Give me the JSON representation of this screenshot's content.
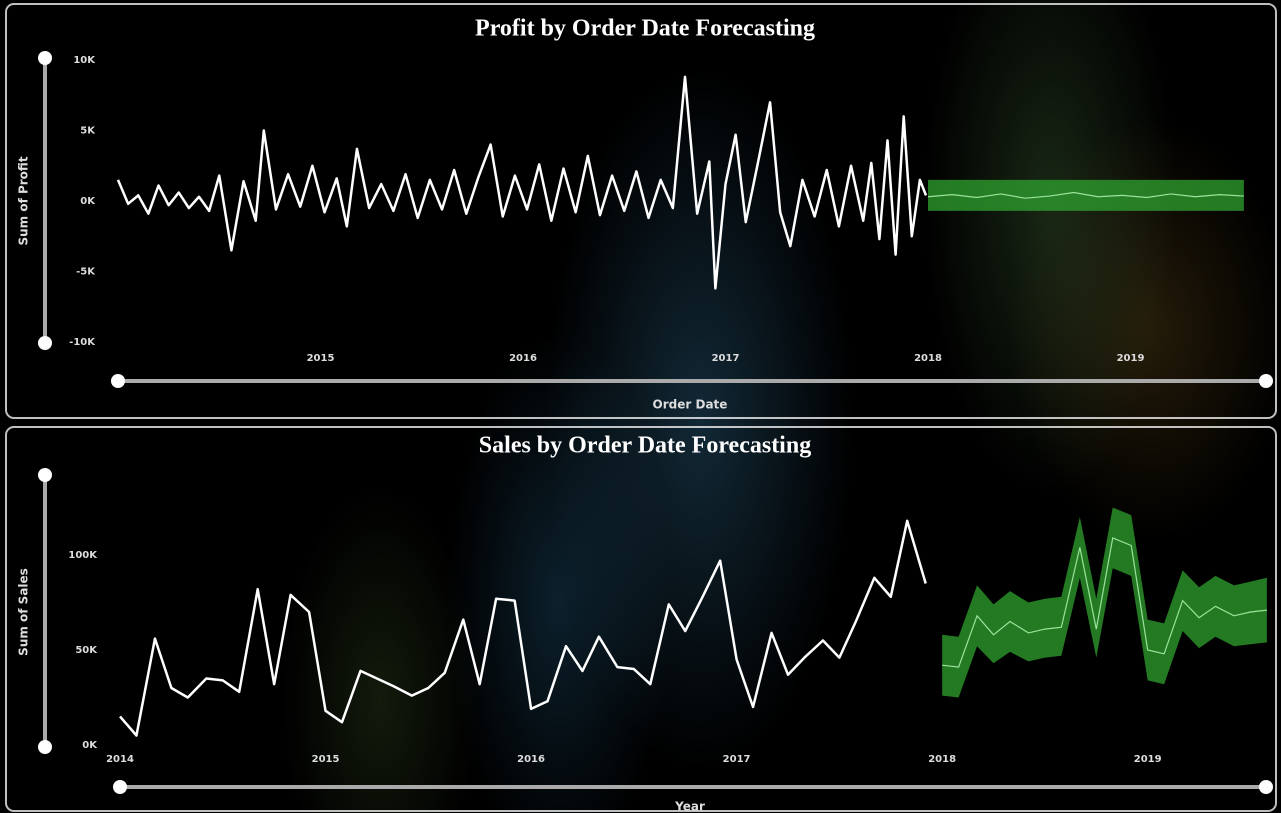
{
  "chart_data": [
    {
      "type": "line",
      "title": "Profit by Order Date Forecasting",
      "x_label": "Order Date",
      "y_label": "Sum of Profit",
      "xlim": [
        2014,
        2019.6
      ],
      "xticks": [
        2015,
        2016,
        2017,
        2018,
        2019
      ],
      "ylim": [
        -10000,
        10000
      ],
      "yticks": [
        {
          "value": 10000,
          "label": "10K"
        },
        {
          "value": 5000,
          "label": "5K"
        },
        {
          "value": 0,
          "label": "0K"
        },
        {
          "value": -5000,
          "label": "-5K"
        },
        {
          "value": -10000,
          "label": "-10K"
        }
      ],
      "color": "#ffffff",
      "x": [
        2014.0,
        2014.05,
        2014.1,
        2014.15,
        2014.2,
        2014.25,
        2014.3,
        2014.35,
        2014.4,
        2014.45,
        2014.5,
        2014.56,
        2014.62,
        2014.68,
        2014.72,
        2014.78,
        2014.84,
        2014.9,
        2014.96,
        2015.02,
        2015.08,
        2015.13,
        2015.18,
        2015.24,
        2015.3,
        2015.36,
        2015.42,
        2015.48,
        2015.54,
        2015.6,
        2015.66,
        2015.72,
        2015.78,
        2015.84,
        2015.9,
        2015.96,
        2016.02,
        2016.08,
        2016.14,
        2016.2,
        2016.26,
        2016.32,
        2016.38,
        2016.44,
        2016.5,
        2016.56,
        2016.62,
        2016.68,
        2016.74,
        2016.8,
        2016.86,
        2016.92,
        2016.95,
        2017.0,
        2017.05,
        2017.1,
        2017.16,
        2017.22,
        2017.27,
        2017.32,
        2017.38,
        2017.44,
        2017.5,
        2017.56,
        2017.62,
        2017.68,
        2017.72,
        2017.76,
        2017.8,
        2017.84,
        2017.88,
        2017.92,
        2017.96,
        2017.99
      ],
      "values": [
        1500,
        -200,
        400,
        -900,
        1100,
        -300,
        600,
        -500,
        300,
        -700,
        1800,
        -3500,
        1400,
        -1400,
        5000,
        -600,
        1900,
        -400,
        2500,
        -800,
        1600,
        -1800,
        3700,
        -500,
        1200,
        -700,
        1900,
        -1200,
        1500,
        -600,
        2200,
        -900,
        1700,
        4000,
        -1100,
        1800,
        -600,
        2600,
        -1400,
        2300,
        -800,
        3200,
        -1000,
        1800,
        -700,
        2100,
        -1200,
        1500,
        -500,
        8800,
        -900,
        2800,
        -6200,
        1200,
        4700,
        -1500,
        2700,
        7000,
        -800,
        -3200,
        1500,
        -1100,
        2200,
        -1800,
        2500,
        -1400,
        2700,
        -2700,
        4300,
        -3800,
        6000,
        -2500,
        1500,
        400
      ],
      "forecast": {
        "color": "#2fa32f",
        "x": [
          2018.0,
          2018.12,
          2018.24,
          2018.36,
          2018.48,
          2018.6,
          2018.72,
          2018.84,
          2018.96,
          2019.08,
          2019.2,
          2019.32,
          2019.44,
          2019.56
        ],
        "values": [
          300,
          450,
          250,
          500,
          200,
          350,
          600,
          300,
          400,
          250,
          500,
          300,
          450,
          350
        ],
        "lower": [
          -700,
          -700,
          -700,
          -700,
          -700,
          -700,
          -700,
          -700,
          -700,
          -700,
          -700,
          -700,
          -700,
          -700
        ],
        "upper": [
          1500,
          1500,
          1500,
          1500,
          1500,
          1500,
          1500,
          1500,
          1500,
          1500,
          1500,
          1500,
          1500,
          1500
        ]
      }
    },
    {
      "type": "line",
      "title": "Sales by Order Date Forecasting",
      "x_label": "Year",
      "y_label": "Sum of Sales",
      "xlim": [
        2014,
        2019.6
      ],
      "xticks": [
        2014,
        2015,
        2016,
        2017,
        2018,
        2019
      ],
      "ylim": [
        0,
        140000
      ],
      "yticks": [
        {
          "value": 100000,
          "label": "100K"
        },
        {
          "value": 50000,
          "label": "50K"
        },
        {
          "value": 0,
          "label": "0K"
        }
      ],
      "color": "#ffffff",
      "x": [
        2014.0,
        2014.08,
        2014.17,
        2014.25,
        2014.33,
        2014.42,
        2014.5,
        2014.58,
        2014.67,
        2014.75,
        2014.83,
        2014.92,
        2015.0,
        2015.08,
        2015.17,
        2015.25,
        2015.33,
        2015.42,
        2015.5,
        2015.58,
        2015.67,
        2015.75,
        2015.83,
        2015.92,
        2016.0,
        2016.08,
        2016.17,
        2016.25,
        2016.33,
        2016.42,
        2016.5,
        2016.58,
        2016.67,
        2016.75,
        2016.83,
        2016.92,
        2017.0,
        2017.08,
        2017.17,
        2017.25,
        2017.33,
        2017.42,
        2017.5,
        2017.58,
        2017.67,
        2017.75,
        2017.83,
        2017.92
      ],
      "values": [
        15000,
        5000,
        56000,
        30000,
        25000,
        35000,
        34000,
        28000,
        82000,
        32000,
        79000,
        70000,
        18000,
        12000,
        39000,
        35000,
        31000,
        26000,
        30000,
        38000,
        66000,
        32000,
        77000,
        76000,
        19000,
        23000,
        52000,
        39000,
        57000,
        41000,
        40000,
        32000,
        74000,
        60000,
        77000,
        97000,
        45000,
        20000,
        59000,
        37000,
        46000,
        55000,
        46000,
        65000,
        88000,
        78000,
        118000,
        85000
      ],
      "forecast": {
        "color": "#2fa32f",
        "x": [
          2018.0,
          2018.08,
          2018.17,
          2018.25,
          2018.33,
          2018.42,
          2018.5,
          2018.58,
          2018.67,
          2018.75,
          2018.83,
          2018.92,
          2019.0,
          2019.08,
          2019.17,
          2019.25,
          2019.33,
          2019.42,
          2019.5,
          2019.58
        ],
        "values": [
          42000,
          41000,
          68000,
          58000,
          65000,
          59000,
          61000,
          62000,
          104000,
          61000,
          109000,
          105000,
          50000,
          48000,
          76000,
          67000,
          73000,
          68000,
          70000,
          71000
        ],
        "lower": [
          26000,
          25000,
          52000,
          43000,
          49000,
          44000,
          46000,
          47000,
          88000,
          46000,
          93000,
          89000,
          34000,
          32000,
          60000,
          51000,
          57000,
          52000,
          53000,
          54000
        ],
        "upper": [
          58000,
          57000,
          84000,
          74000,
          81000,
          75000,
          77000,
          78000,
          120000,
          77000,
          125000,
          121000,
          66000,
          64000,
          92000,
          83000,
          89000,
          84000,
          86000,
          88000
        ]
      }
    }
  ]
}
